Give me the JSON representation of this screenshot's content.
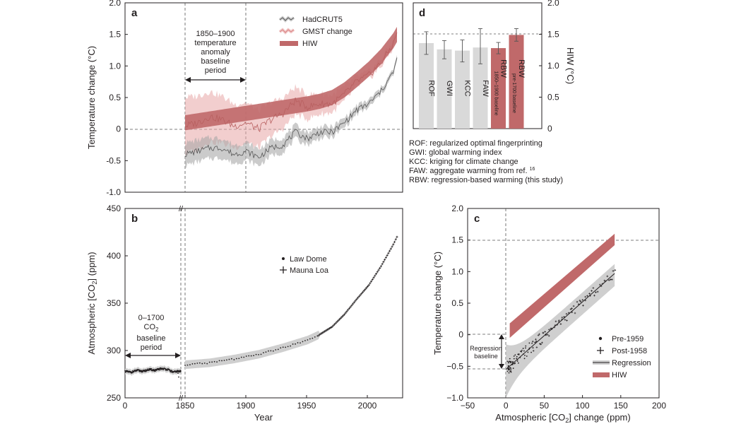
{
  "chart_data": [
    {
      "panel": "a",
      "type": "line",
      "ylabel": "Temperature change (°C)",
      "xlim": [
        1850,
        2023
      ],
      "ylim": [
        -1.0,
        2.0
      ],
      "yticks": [
        "2.0",
        "1.5",
        "1.0",
        "0.5",
        "0",
        "-0.5",
        "-1.0"
      ],
      "legend": [
        "HadCRUT5",
        "GMST change",
        "HIW"
      ],
      "annotation": [
        "1850–1900",
        "temperature",
        "anomaly",
        "baseline",
        "period"
      ],
      "series": [
        {
          "name": "HadCRUT5",
          "color": "#707070",
          "x": [
            1850,
            1860,
            1870,
            1880,
            1890,
            1900,
            1910,
            1920,
            1930,
            1940,
            1950,
            1960,
            1970,
            1980,
            1990,
            2000,
            2010,
            2020,
            2023
          ],
          "y": [
            -0.4,
            -0.35,
            -0.3,
            -0.3,
            -0.4,
            -0.35,
            -0.45,
            -0.3,
            -0.25,
            -0.05,
            -0.15,
            -0.05,
            -0.05,
            0.1,
            0.3,
            0.4,
            0.6,
            0.9,
            1.1
          ]
        },
        {
          "name": "GMST change",
          "color": "#d98080",
          "x": [
            1850,
            1860,
            1870,
            1880,
            1890,
            1900,
            1910,
            1920,
            1930,
            1940,
            1950,
            1960,
            1970,
            1980,
            1990,
            2000,
            2010,
            2020,
            2023
          ],
          "y": [
            0.05,
            0.1,
            0.2,
            0.15,
            0.05,
            0.1,
            0.0,
            0.15,
            0.25,
            0.45,
            0.35,
            0.4,
            0.4,
            0.55,
            0.75,
            0.85,
            1.05,
            1.35,
            1.55
          ]
        },
        {
          "name": "HIW",
          "color": "#c0696a",
          "x": [
            1850,
            1860,
            1870,
            1880,
            1890,
            1900,
            1910,
            1920,
            1930,
            1940,
            1950,
            1960,
            1970,
            1980,
            1990,
            2000,
            2010,
            2020,
            2023
          ],
          "y": [
            0.1,
            0.13,
            0.16,
            0.19,
            0.22,
            0.25,
            0.28,
            0.31,
            0.34,
            0.37,
            0.4,
            0.44,
            0.5,
            0.62,
            0.78,
            0.95,
            1.15,
            1.4,
            1.5
          ]
        }
      ]
    },
    {
      "panel": "b",
      "type": "scatter",
      "xlabel": "Year",
      "ylabel": "Atmospheric [CO₂] (ppm)",
      "xticks": [
        "0",
        "1850",
        "1900",
        "1950",
        "2000"
      ],
      "yticks": [
        "450",
        "400",
        "350",
        "300",
        "250"
      ],
      "ylim": [
        250,
        450
      ],
      "legend": [
        "Law Dome",
        "Mauna Loa"
      ],
      "annotation": [
        "0–1700",
        "CO₂",
        "baseline",
        "period"
      ],
      "break_marks": "//",
      "series": [
        {
          "name": "Law Dome",
          "x": [
            0,
            200,
            400,
            600,
            800,
            1000,
            1200,
            1400,
            1600,
            1700
          ],
          "y": [
            278,
            277,
            279,
            278,
            280,
            279,
            281,
            280,
            277,
            278
          ]
        },
        {
          "name": "Mauna Loa",
          "x": [
            1850,
            1870,
            1890,
            1910,
            1930,
            1950,
            1960,
            1970,
            1980,
            1990,
            2000,
            2010,
            2020,
            2023
          ],
          "y": [
            285,
            287,
            291,
            296,
            303,
            311,
            317,
            325,
            338,
            354,
            369,
            389,
            412,
            420
          ]
        }
      ]
    },
    {
      "panel": "c",
      "type": "scatter",
      "xlabel": "Atmospheric [CO₂] change (ppm)",
      "ylabel": "Temperature change (°C)",
      "xlim": [
        -50,
        200
      ],
      "ylim": [
        -1.0,
        2.0
      ],
      "xticks": [
        "−50",
        "0",
        "50",
        "100",
        "150",
        "200"
      ],
      "yticks": [
        "2.0",
        "1.5",
        "1.0",
        "0.5",
        "0",
        "−0.5",
        "−1.0"
      ],
      "legend": [
        "Pre-1959",
        "Post-1958",
        "Regression",
        "HIW"
      ],
      "annotation": [
        "Regression",
        "baseline"
      ],
      "regression": {
        "x": [
          0,
          142
        ],
        "y": [
          -0.55,
          0.97
        ]
      },
      "hiw_band": {
        "x": [
          5,
          142
        ],
        "lower": [
          -0.05,
          1.42
        ],
        "upper": [
          0.18,
          1.6
        ]
      }
    },
    {
      "panel": "d",
      "type": "bar",
      "ylabel": "HIW (°C)",
      "ylim": [
        0,
        2.0
      ],
      "yticks": [
        "2.0",
        "1.5",
        "1.0",
        "0.5",
        "0"
      ],
      "categories": [
        "ROF",
        "GWI",
        "KCC",
        "FAW",
        "RBW",
        "RBW"
      ],
      "sublabels": [
        "",
        "",
        "",
        "",
        "1850–1900 baseline",
        "pre-1700 baseline"
      ],
      "values": [
        1.36,
        1.26,
        1.24,
        1.29,
        1.28,
        1.49
      ],
      "errors_low": [
        1.18,
        1.11,
        1.06,
        1.03,
        1.19,
        1.39
      ],
      "errors_high": [
        1.54,
        1.4,
        1.41,
        1.59,
        1.37,
        1.59
      ],
      "colors": [
        "#d9d9d9",
        "#d9d9d9",
        "#d9d9d9",
        "#d9d9d9",
        "#c0696a",
        "#c0696a"
      ],
      "glossary": [
        "ROF: regularized optimal fingerprinting",
        "GWI: global warming index",
        "KCC: kriging for climate change",
        "FAW: aggregate warming from ref. ",
        "RBW: regression-based warming (this study)"
      ],
      "glossary_ref": "16"
    }
  ]
}
